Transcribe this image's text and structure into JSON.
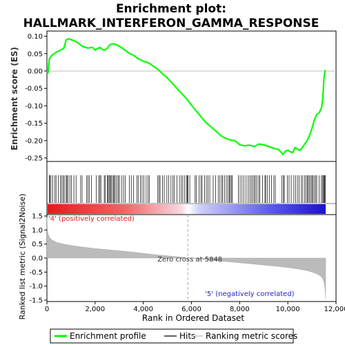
{
  "chart_data": {
    "type": "line",
    "title_line1": "Enrichment plot:",
    "title_line2": "HALLMARK_INTERFERON_GAMMA_RESPONSE",
    "top_panel": {
      "ylabel": "Enrichment score (ES)",
      "ylim": [
        -0.26,
        0.115
      ],
      "yticks": [
        0.1,
        0.05,
        0.0,
        -0.05,
        -0.1,
        -0.15,
        -0.2,
        -0.25
      ],
      "ytick_labels": [
        "0.10",
        "0.05",
        "0.00",
        "-0.05",
        "-0.10",
        "-0.15",
        "-0.20",
        "-0.25"
      ],
      "series": [
        {
          "name": "Enrichment profile",
          "color": "#00ff00",
          "x": [
            0,
            50,
            100,
            200,
            300,
            400,
            500,
            600,
            700,
            800,
            900,
            1000,
            1100,
            1200,
            1300,
            1400,
            1500,
            1600,
            1700,
            1800,
            1900,
            2000,
            2100,
            2200,
            2300,
            2400,
            2500,
            2600,
            2700,
            2800,
            3000,
            3200,
            3400,
            3600,
            3800,
            4000,
            4200,
            4400,
            4600,
            4800,
            5000,
            5200,
            5400,
            5600,
            5800,
            6000,
            6200,
            6400,
            6600,
            6800,
            7000,
            7200,
            7400,
            7600,
            7800,
            8000,
            8200,
            8400,
            8600,
            8800,
            9000,
            9200,
            9400,
            9600,
            9700,
            9800,
            9900,
            10000,
            10100,
            10200,
            10300,
            10400,
            10500,
            10600,
            10700,
            10800,
            10900,
            11000,
            11100,
            11200,
            11300,
            11400,
            11450,
            11500,
            11550
          ],
          "y": [
            0.0,
            -0.005,
            0.035,
            0.045,
            0.05,
            0.055,
            0.058,
            0.062,
            0.065,
            0.09,
            0.093,
            0.09,
            0.088,
            0.085,
            0.08,
            0.075,
            0.07,
            0.068,
            0.066,
            0.067,
            0.068,
            0.06,
            0.065,
            0.068,
            0.062,
            0.06,
            0.065,
            0.075,
            0.078,
            0.078,
            0.072,
            0.062,
            0.052,
            0.045,
            0.035,
            0.028,
            0.024,
            0.015,
            0.005,
            -0.008,
            -0.02,
            -0.035,
            -0.05,
            -0.065,
            -0.08,
            -0.098,
            -0.115,
            -0.132,
            -0.148,
            -0.16,
            -0.172,
            -0.185,
            -0.193,
            -0.198,
            -0.2,
            -0.212,
            -0.215,
            -0.213,
            -0.217,
            -0.21,
            -0.212,
            -0.217,
            -0.222,
            -0.225,
            -0.232,
            -0.24,
            -0.23,
            -0.228,
            -0.232,
            -0.235,
            -0.22,
            -0.225,
            -0.228,
            -0.22,
            -0.21,
            -0.2,
            -0.185,
            -0.165,
            -0.14,
            -0.125,
            -0.12,
            -0.105,
            -0.08,
            -0.02,
            0.003
          ]
        }
      ]
    },
    "hits_panel": {
      "legend_name": "Hits",
      "hit_positions": [
        95,
        120,
        170,
        245,
        330,
        380,
        470,
        560,
        610,
        680,
        720,
        800,
        830,
        880,
        950,
        1020,
        1120,
        1210,
        1400,
        1460,
        1650,
        1700,
        1760,
        1850,
        2050,
        2150,
        2200,
        2240,
        2380,
        2420,
        2500,
        2540,
        2580,
        2620,
        2660,
        2700,
        2760,
        2790,
        2840,
        2900,
        2960,
        3010,
        3100,
        3180,
        3250,
        3420,
        3500,
        3600,
        3740,
        3790,
        3880,
        3950,
        4020,
        4120,
        4200,
        4250,
        4600,
        4650,
        4700,
        4800,
        4870,
        4980,
        5050,
        5150,
        5230,
        5290,
        5400,
        5500,
        5580,
        5640,
        5720,
        5790,
        5830,
        5860,
        5930,
        6150,
        6200,
        6320,
        6390,
        6440,
        6540,
        6620,
        6690,
        6760,
        6900,
        7000,
        7110,
        7180,
        7250,
        7300,
        7380,
        7450,
        7520,
        7580,
        7600,
        7660,
        7700,
        7950,
        8020,
        8100,
        8180,
        8260,
        8350,
        8420,
        8480,
        8540,
        8600,
        8650,
        8710,
        8790,
        8840,
        8950,
        9050,
        9080,
        9150,
        9230,
        9320,
        9420,
        9480,
        9750,
        9820,
        9850,
        9980,
        10050,
        10140,
        10250,
        10320,
        10400,
        10470,
        10560,
        10620,
        10700,
        10760,
        10810,
        10850,
        10900,
        10950,
        11000,
        11040,
        11100,
        11150,
        11200,
        11300,
        11390,
        11440,
        11480,
        11510,
        11530,
        11550
      ]
    },
    "rank_panel": {
      "ylabel": "Ranked list metric (Signal2Noise)",
      "ylim": [
        -1.55,
        1.55
      ],
      "yticks": [
        1.5,
        1.0,
        0.5,
        0.0,
        -0.5,
        -1.0,
        -1.5
      ],
      "ytick_labels": [
        "1.5",
        "1.0",
        "0.5",
        "0.0",
        "-0.5",
        "-1.0",
        "-1.5"
      ],
      "legend_name": "Ranking metric scores",
      "x": [
        0,
        20,
        50,
        100,
        200,
        400,
        700,
        1000,
        1500,
        2000,
        2500,
        3000,
        3500,
        4000,
        4500,
        5000,
        5500,
        5848,
        6500,
        7000,
        7500,
        8000,
        8500,
        9000,
        9500,
        10000,
        10500,
        10800,
        11000,
        11200,
        11300,
        11400,
        11450,
        11500,
        11540,
        11570
      ],
      "values": [
        1.45,
        1.05,
        0.85,
        0.75,
        0.65,
        0.56,
        0.5,
        0.45,
        0.39,
        0.34,
        0.3,
        0.26,
        0.22,
        0.17,
        0.12,
        0.08,
        0.04,
        0.0,
        -0.05,
        -0.09,
        -0.13,
        -0.17,
        -0.21,
        -0.25,
        -0.29,
        -0.34,
        -0.4,
        -0.45,
        -0.5,
        -0.56,
        -0.61,
        -0.68,
        -0.75,
        -0.85,
        -1.05,
        -1.45
      ],
      "zero_cross_label": "Zero cross at 5848",
      "zero_cross": 5848,
      "pos_label": "'4' (positively correlated)",
      "neg_label": "'5' (negatively correlated)"
    },
    "xaxis": {
      "label": "Rank in Ordered Dataset",
      "xlim": [
        0,
        12000
      ],
      "xticks": [
        0,
        2000,
        4000,
        6000,
        8000,
        10000,
        12000
      ],
      "xtick_labels": [
        "0",
        "2,000",
        "4,000",
        "6,000",
        "8,000",
        "10,000",
        "12,000"
      ],
      "n_genes": 11570
    },
    "legend": {
      "entries": [
        {
          "name": "Enrichment profile",
          "color": "#00ff00"
        },
        {
          "name": "Hits",
          "color": "#000000"
        },
        {
          "name": "Ranking metric scores",
          "color": "#bbbbbb"
        }
      ],
      "placement": "bottom"
    }
  }
}
